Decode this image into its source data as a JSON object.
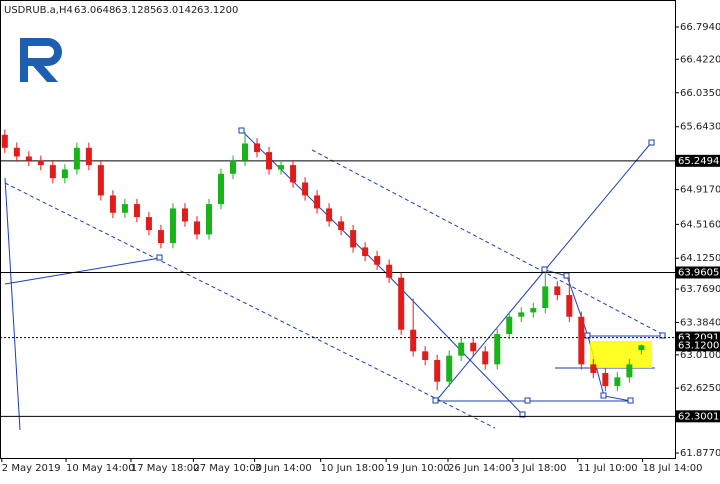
{
  "chart_data": {
    "type": "candlestick",
    "title": "USDRUB.a,H4",
    "quote": [
      "63.0648",
      "63.1285",
      "63.0142",
      "63.1200"
    ],
    "x": [
      0,
      1,
      2,
      3,
      4,
      5,
      6,
      7,
      8,
      9,
      10,
      11,
      12,
      13,
      14,
      15,
      16,
      17,
      18,
      19,
      20,
      21,
      22,
      23,
      24,
      25,
      26,
      27,
      28,
      29,
      30,
      31,
      32,
      33,
      34,
      35,
      36,
      37,
      38,
      39,
      40,
      41,
      42,
      43,
      44,
      45,
      46,
      47,
      48,
      49,
      50,
      51,
      52,
      53
    ],
    "open": [
      65.55,
      65.4,
      65.3,
      65.25,
      65.2,
      65.05,
      65.15,
      65.4,
      65.2,
      64.85,
      64.65,
      64.75,
      64.6,
      64.45,
      64.3,
      64.7,
      64.55,
      64.4,
      64.75,
      65.1,
      65.25,
      65.45,
      65.35,
      65.15,
      65.2,
      65.0,
      64.85,
      64.7,
      64.55,
      64.45,
      64.25,
      64.15,
      64.05,
      63.9,
      63.3,
      63.05,
      62.95,
      62.7,
      63.0,
      63.15,
      63.05,
      62.9,
      63.25,
      63.45,
      63.5,
      63.55,
      63.8,
      63.7,
      63.45,
      62.9,
      62.8,
      62.65,
      62.75,
      63.0648
    ],
    "high": [
      65.61,
      65.46,
      65.36,
      65.31,
      65.26,
      65.21,
      65.46,
      65.46,
      65.26,
      64.91,
      64.81,
      64.81,
      64.66,
      64.51,
      64.76,
      64.76,
      64.61,
      64.81,
      65.16,
      65.31,
      65.58,
      65.51,
      65.41,
      65.26,
      65.26,
      65.06,
      64.91,
      64.76,
      64.61,
      64.51,
      64.31,
      64.21,
      64.11,
      63.96,
      63.66,
      63.11,
      63.01,
      63.06,
      63.21,
      63.21,
      63.11,
      63.31,
      63.51,
      63.56,
      63.61,
      63.96,
      63.86,
      63.9,
      63.51,
      62.96,
      62.86,
      62.81,
      62.96,
      63.1285
    ],
    "low": [
      65.34,
      65.24,
      65.19,
      65.14,
      64.99,
      64.99,
      65.09,
      65.14,
      64.79,
      64.59,
      64.59,
      64.54,
      64.39,
      64.24,
      64.24,
      64.49,
      64.34,
      64.34,
      64.69,
      65.04,
      65.19,
      65.29,
      65.09,
      65.09,
      64.94,
      64.79,
      64.64,
      64.49,
      64.39,
      64.19,
      64.09,
      63.99,
      63.84,
      63.24,
      62.99,
      62.89,
      62.6,
      62.64,
      62.94,
      62.99,
      62.84,
      62.84,
      63.19,
      63.39,
      63.44,
      63.49,
      63.64,
      63.39,
      62.84,
      62.74,
      62.59,
      62.59,
      62.69,
      63.0142
    ],
    "close": [
      65.4,
      65.3,
      65.25,
      65.2,
      65.05,
      65.15,
      65.4,
      65.2,
      64.85,
      64.65,
      64.75,
      64.6,
      64.45,
      64.3,
      64.7,
      64.55,
      64.4,
      64.75,
      65.1,
      65.25,
      65.45,
      65.35,
      65.15,
      65.2,
      65.0,
      64.85,
      64.7,
      64.55,
      64.45,
      64.25,
      64.15,
      64.05,
      63.9,
      63.3,
      63.05,
      62.95,
      62.7,
      63.0,
      63.15,
      63.05,
      62.9,
      63.25,
      63.45,
      63.5,
      63.55,
      63.8,
      63.7,
      63.45,
      62.9,
      62.8,
      62.65,
      62.75,
      62.9,
      63.12
    ],
    "up_color": "#19b419",
    "down_color": "#e21b1b",
    "xlim": [
      -0.4,
      55.8
    ],
    "xticks": [
      {
        "value": -0.25,
        "label": "2 May 2019"
      },
      {
        "value": 5.1,
        "label": "10 May 14:00"
      },
      {
        "value": 10.5,
        "label": "17 May 18:00"
      },
      {
        "value": 15.7,
        "label": "27 May 10:00"
      },
      {
        "value": 20.8,
        "label": "3 Jun 14:00"
      },
      {
        "value": 26.3,
        "label": "10 Jun 18:00"
      },
      {
        "value": 31.75,
        "label": "19 Jun 10:00"
      },
      {
        "value": 36.9,
        "label": "26 Jun 14:00"
      },
      {
        "value": 42.3,
        "label": "3 Jul 18:00"
      },
      {
        "value": 47.7,
        "label": "11 Jul 10:00"
      },
      {
        "value": 53.1,
        "label": "18 Jul 14:00"
      }
    ],
    "ylim": [
      61.819,
      67.106
    ],
    "yticks": [
      {
        "value": 66.794,
        "label": "66.7940"
      },
      {
        "value": 66.422,
        "label": "66.4220"
      },
      {
        "value": 66.035,
        "label": "66.0350"
      },
      {
        "value": 65.643,
        "label": "65.6430"
      },
      {
        "value": 64.917,
        "label": "64.9170"
      },
      {
        "value": 64.516,
        "label": "64.5160"
      },
      {
        "value": 64.125,
        "label": "64.1250"
      },
      {
        "value": 63.769,
        "label": "63.7690"
      },
      {
        "value": 63.384,
        "label": "63.3840"
      },
      {
        "value": 63.01,
        "label": "63.0100"
      },
      {
        "value": 62.625,
        "label": "62.6250"
      },
      {
        "value": 61.877,
        "label": "61.8770"
      }
    ],
    "levels": [
      {
        "value": 65.2494,
        "style": "solid"
      },
      {
        "value": 63.9605,
        "style": "solid"
      },
      {
        "value": 63.2091,
        "style": "dotted"
      },
      {
        "value": 62.3001,
        "style": "solid"
      }
    ],
    "current_price": {
      "value": 63.12,
      "label": "63.1200"
    }
  }
}
